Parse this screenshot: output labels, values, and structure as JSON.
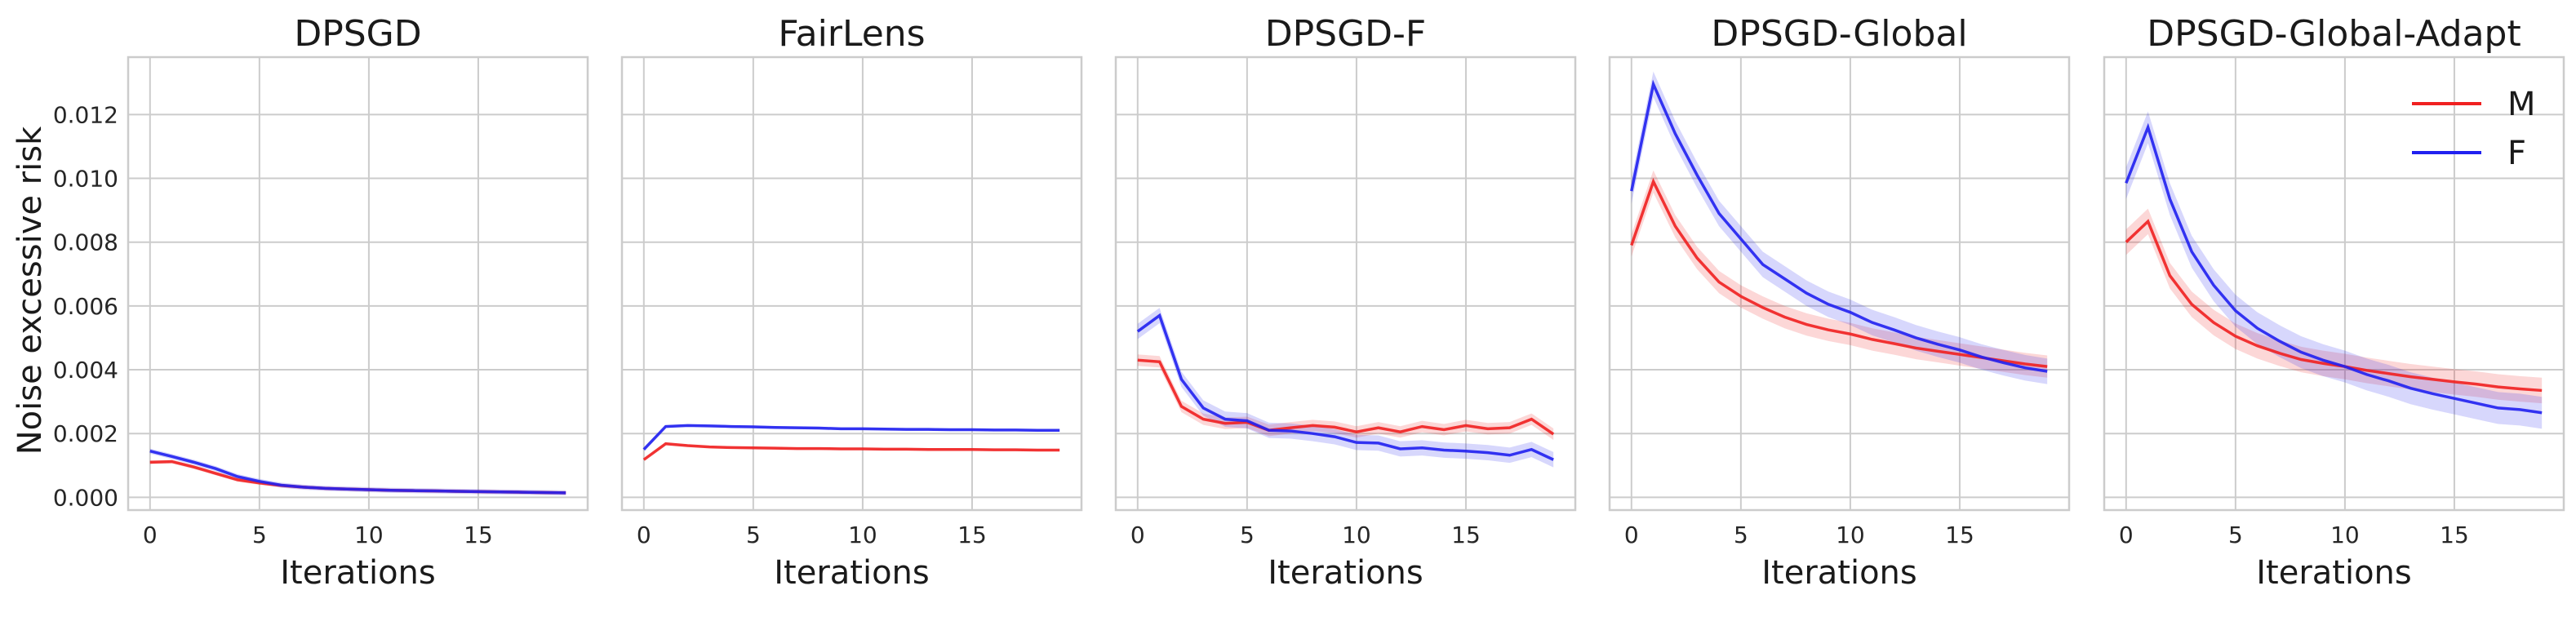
{
  "chart_data": {
    "type": "line",
    "ylabel": "Noise excessive risk",
    "xlabel": "Iterations",
    "xlim": [
      -1,
      20
    ],
    "ylim": [
      -0.0004,
      0.0138
    ],
    "xticks": [
      0,
      5,
      10,
      15
    ],
    "yticks": [
      0.0,
      0.002,
      0.004,
      0.006,
      0.008,
      0.01,
      0.012
    ],
    "ytick_labels": [
      "0.000",
      "0.002",
      "0.004",
      "0.006",
      "0.008",
      "0.010",
      "0.012"
    ],
    "x": [
      0,
      1,
      2,
      3,
      4,
      5,
      6,
      7,
      8,
      9,
      10,
      11,
      12,
      13,
      14,
      15,
      16,
      17,
      18,
      19
    ],
    "colors": {
      "M": "#f02020",
      "F": "#2020f0"
    },
    "legend": {
      "location": "top-right",
      "panel": 4,
      "entries": [
        "M",
        "F"
      ]
    },
    "panels": [
      {
        "title": "DPSGD",
        "series": [
          {
            "name": "M",
            "values": [
              0.0011,
              0.00112,
              0.00095,
              0.00075,
              0.00055,
              0.00045,
              0.00037,
              0.00032,
              0.00028,
              0.00026,
              0.00024,
              0.00022,
              0.00021,
              0.0002,
              0.00019,
              0.00018,
              0.00017,
              0.00016,
              0.00015,
              0.00014
            ],
            "band": 6e-05
          },
          {
            "name": "F",
            "values": [
              0.00145,
              0.00128,
              0.0011,
              0.0009,
              0.00065,
              0.0005,
              0.00038,
              0.00032,
              0.00028,
              0.00026,
              0.00024,
              0.00022,
              0.00021,
              0.0002,
              0.00019,
              0.00018,
              0.00017,
              0.00016,
              0.00015,
              0.00014
            ],
            "band": 8e-05
          }
        ]
      },
      {
        "title": "FairLens",
        "series": [
          {
            "name": "M",
            "values": [
              0.00118,
              0.00168,
              0.00162,
              0.00158,
              0.00156,
              0.00155,
              0.00154,
              0.00153,
              0.00153,
              0.00152,
              0.00152,
              0.00151,
              0.00151,
              0.0015,
              0.0015,
              0.0015,
              0.00149,
              0.00149,
              0.00148,
              0.00148
            ],
            "band": 3e-05
          },
          {
            "name": "F",
            "values": [
              0.0015,
              0.00222,
              0.00225,
              0.00224,
              0.00222,
              0.00221,
              0.00219,
              0.00218,
              0.00217,
              0.00215,
              0.00215,
              0.00214,
              0.00213,
              0.00213,
              0.00212,
              0.00212,
              0.00211,
              0.00211,
              0.0021,
              0.0021
            ],
            "band": 4e-05
          }
        ]
      },
      {
        "title": "DPSGD-F",
        "series": [
          {
            "name": "M",
            "values": [
              0.0043,
              0.00425,
              0.00285,
              0.00245,
              0.00232,
              0.00235,
              0.0021,
              0.00218,
              0.00225,
              0.0022,
              0.00205,
              0.00218,
              0.00205,
              0.00222,
              0.00212,
              0.00225,
              0.00215,
              0.00218,
              0.00245,
              0.00198
            ],
            "band": 0.00018
          },
          {
            "name": "F",
            "values": [
              0.0052,
              0.0057,
              0.0037,
              0.0028,
              0.00245,
              0.0024,
              0.0021,
              0.00208,
              0.002,
              0.0019,
              0.00172,
              0.0017,
              0.00152,
              0.00155,
              0.00148,
              0.00145,
              0.0014,
              0.00132,
              0.0015,
              0.00118
            ],
            "band": 0.00024
          }
        ]
      },
      {
        "title": "DPSGD-Global",
        "series": [
          {
            "name": "M",
            "values": [
              0.0079,
              0.0099,
              0.0085,
              0.0075,
              0.00675,
              0.0063,
              0.00595,
              0.00565,
              0.00542,
              0.00525,
              0.00512,
              0.00495,
              0.00482,
              0.00468,
              0.00458,
              0.00448,
              0.00438,
              0.00428,
              0.00418,
              0.0041
            ],
            "band": 0.00035
          },
          {
            "name": "F",
            "values": [
              0.0096,
              0.01295,
              0.0114,
              0.0101,
              0.0089,
              0.0081,
              0.0073,
              0.00685,
              0.0064,
              0.00605,
              0.0058,
              0.00548,
              0.00525,
              0.005,
              0.0048,
              0.00462,
              0.0044,
              0.00422,
              0.00406,
              0.00395
            ],
            "band": 0.0004
          }
        ]
      },
      {
        "title": "DPSGD-Global-Adapt",
        "series": [
          {
            "name": "M",
            "values": [
              0.008,
              0.00865,
              0.00695,
              0.00605,
              0.00548,
              0.00505,
              0.00475,
              0.00452,
              0.00432,
              0.0042,
              0.0041,
              0.00398,
              0.00388,
              0.00378,
              0.0037,
              0.00362,
              0.00355,
              0.00346,
              0.0034,
              0.00335
            ],
            "band": 0.0004
          },
          {
            "name": "F",
            "values": [
              0.00985,
              0.0116,
              0.00935,
              0.0077,
              0.00665,
              0.00585,
              0.0053,
              0.0049,
              0.00455,
              0.0043,
              0.0041,
              0.00385,
              0.00365,
              0.00342,
              0.00325,
              0.0031,
              0.00295,
              0.0028,
              0.00275,
              0.00265
            ],
            "band": 0.0005
          }
        ]
      }
    ]
  }
}
